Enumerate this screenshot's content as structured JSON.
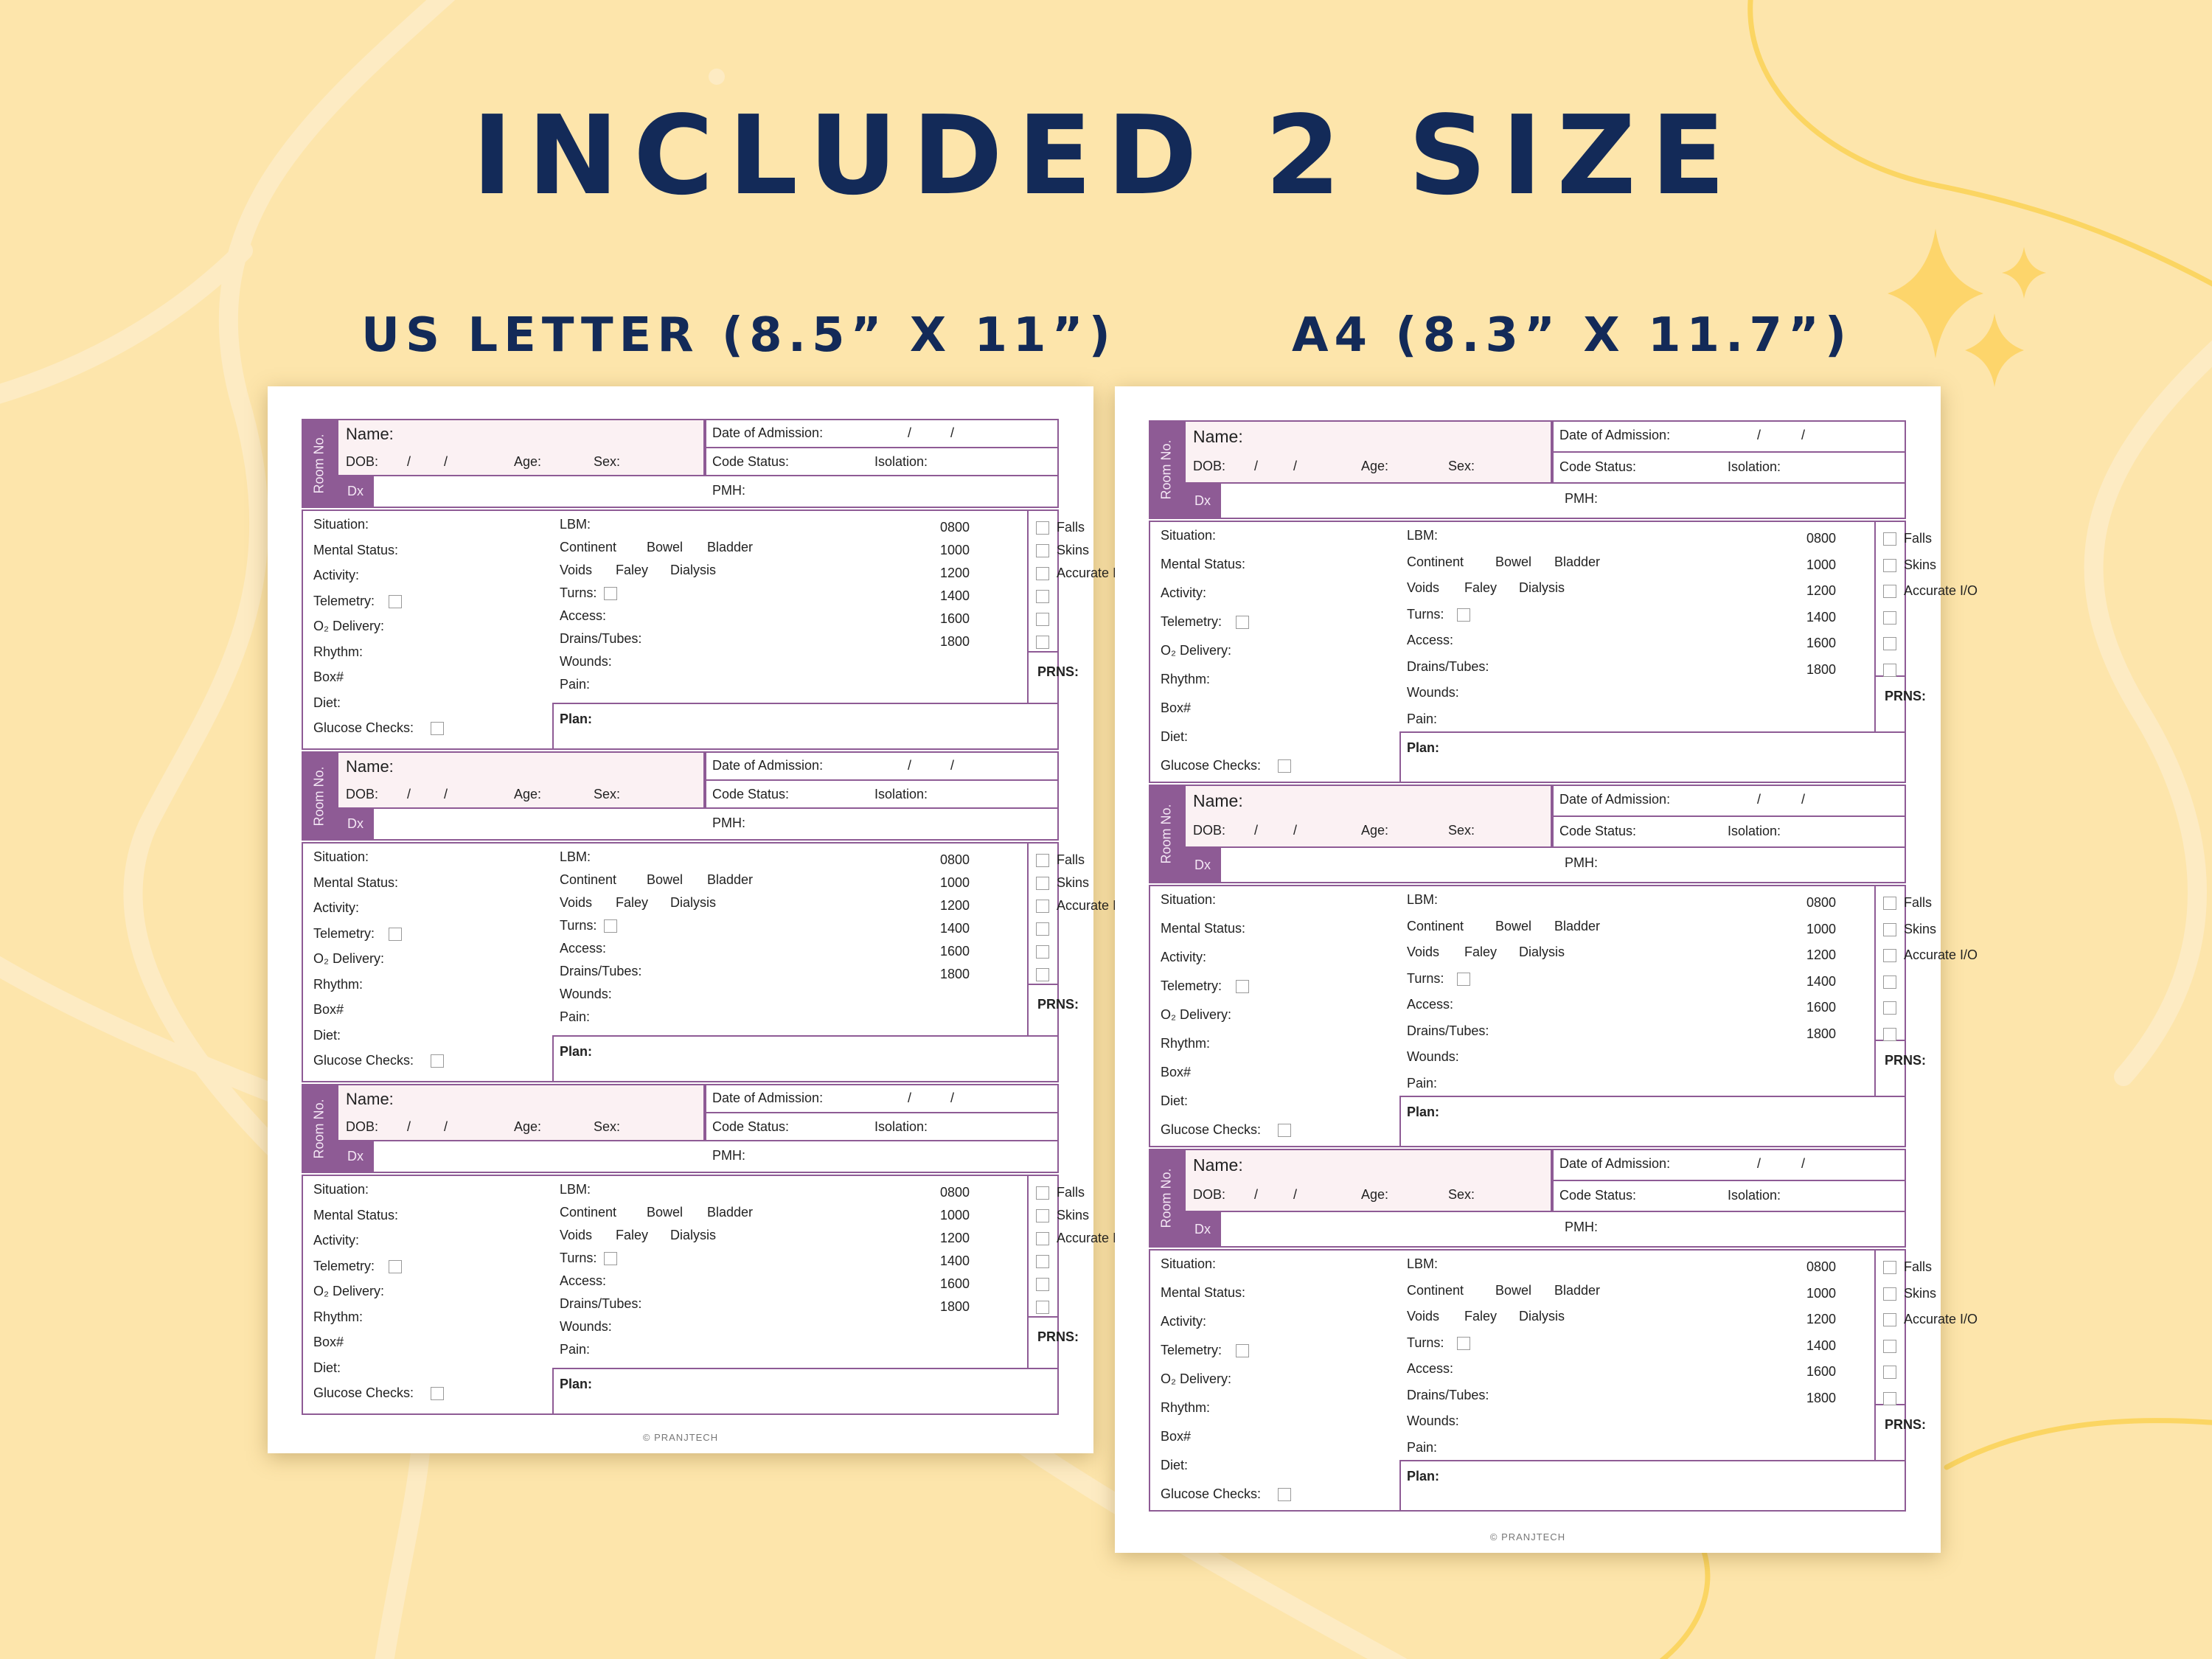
{
  "heading": "INCLUDED 2 SIZE",
  "sizes": {
    "us_letter": "US LETTER (8.5” X 11”)",
    "a4": "A4 (8.3” X 11.7”)"
  },
  "colors": {
    "background": "#fde5ab",
    "heading_text": "#132a58",
    "form_accent": "#8e5b95",
    "name_fill": "#fbf1f3",
    "star": "#fdd56b"
  },
  "form": {
    "room_no": "Room No.",
    "name": "Name:",
    "dob": "DOB:",
    "dob_slash_1": "/",
    "dob_slash_2": "/",
    "age": "Age:",
    "sex": "Sex:",
    "date_of_admission": "Date of Admission:",
    "doa_slash_1": "/",
    "doa_slash_2": "/",
    "code_status": "Code Status:",
    "isolation": "Isolation:",
    "dx": "Dx",
    "pmh": "PMH:",
    "left_labels": [
      "Situation:",
      "Mental Status:",
      "Activity:",
      "Telemetry:",
      "O₂ Delivery:",
      "Rhythm:",
      "Box#",
      "Diet:",
      "Glucose Checks:"
    ],
    "mid": {
      "lbm": "LBM:",
      "continent": "Continent",
      "bowel": "Bowel",
      "bladder": "Bladder",
      "voids": "Voids",
      "faley": "Faley",
      "dialysis": "Dialysis",
      "turns": "Turns:",
      "access": "Access:",
      "drains": "Drains/Tubes:",
      "wounds": "Wounds:",
      "pain": "Pain:"
    },
    "checklist": [
      "Falls",
      "Skins",
      "Accurate I/O",
      "",
      "",
      ""
    ],
    "times": [
      "0800",
      "1000",
      "1200",
      "1400",
      "1600",
      "1800"
    ],
    "prns": "PRNS:",
    "plan": "Plan:",
    "copyright": "© PRANJTECH"
  }
}
